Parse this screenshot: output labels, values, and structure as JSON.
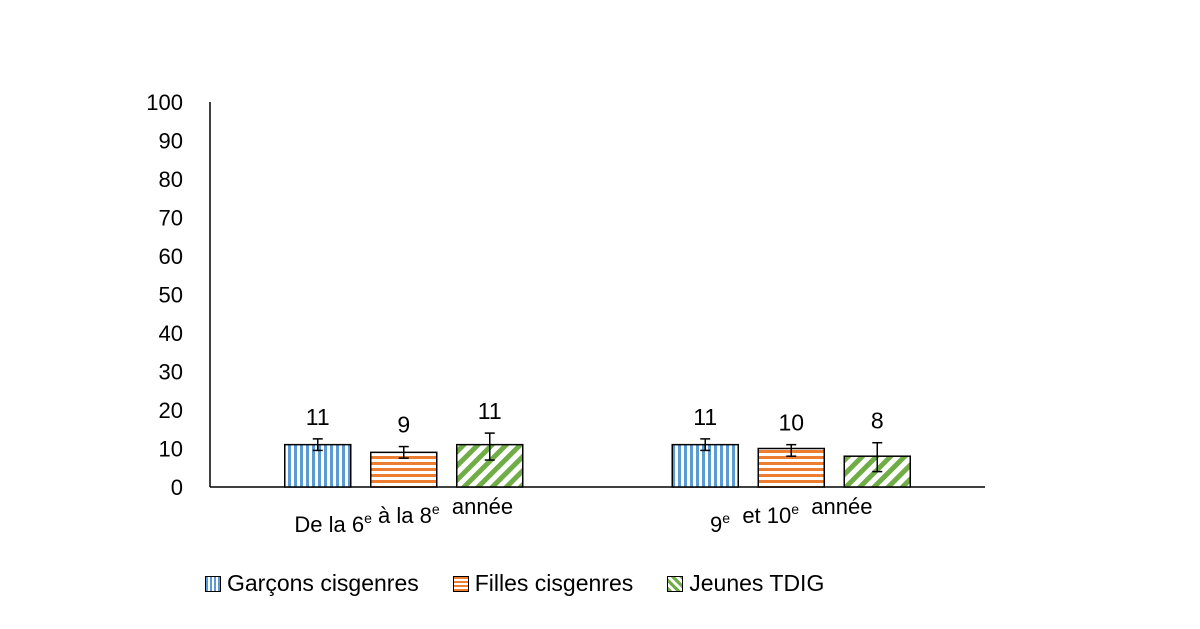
{
  "chart_data": {
    "type": "bar",
    "ylim": [
      0,
      100
    ],
    "yticks": [
      0,
      10,
      20,
      30,
      40,
      50,
      60,
      70,
      80,
      90,
      100
    ],
    "categories": [
      {
        "parts": [
          {
            "t": "De la 6"
          },
          {
            "t": "e",
            "sup": true
          },
          {
            "t": " à la 8"
          },
          {
            "t": "e",
            "sup": true
          },
          {
            "t": "  année"
          }
        ]
      },
      {
        "parts": [
          {
            "t": "9"
          },
          {
            "t": "e",
            "sup": true
          },
          {
            "t": "  et 10"
          },
          {
            "t": "e",
            "sup": true
          },
          {
            "t": "  année"
          }
        ]
      }
    ],
    "series": [
      {
        "name": "Garçons cisgenres",
        "values": [
          11,
          11
        ],
        "errors": [
          [
            9.5,
            12.5
          ],
          [
            9.5,
            12.5
          ]
        ],
        "color": "#5B9BD5",
        "pattern": "vertical-stripes"
      },
      {
        "name": "Filles cisgenres",
        "values": [
          9,
          10
        ],
        "errors": [
          [
            7.5,
            10.5
          ],
          [
            8,
            11
          ]
        ],
        "color": "#ED7D31",
        "pattern": "horizontal-stripes"
      },
      {
        "name": "Jeunes TDIG",
        "values": [
          11,
          8
        ],
        "errors": [
          [
            7,
            14
          ],
          [
            4,
            11.5
          ]
        ],
        "color": "#70AD47",
        "pattern": "diagonal-stripes"
      }
    ],
    "data_labels": [
      [
        "11",
        "11"
      ],
      [
        "9",
        "10"
      ],
      [
        "11",
        "8"
      ]
    ],
    "grid": false,
    "legend_position": "bottom"
  }
}
